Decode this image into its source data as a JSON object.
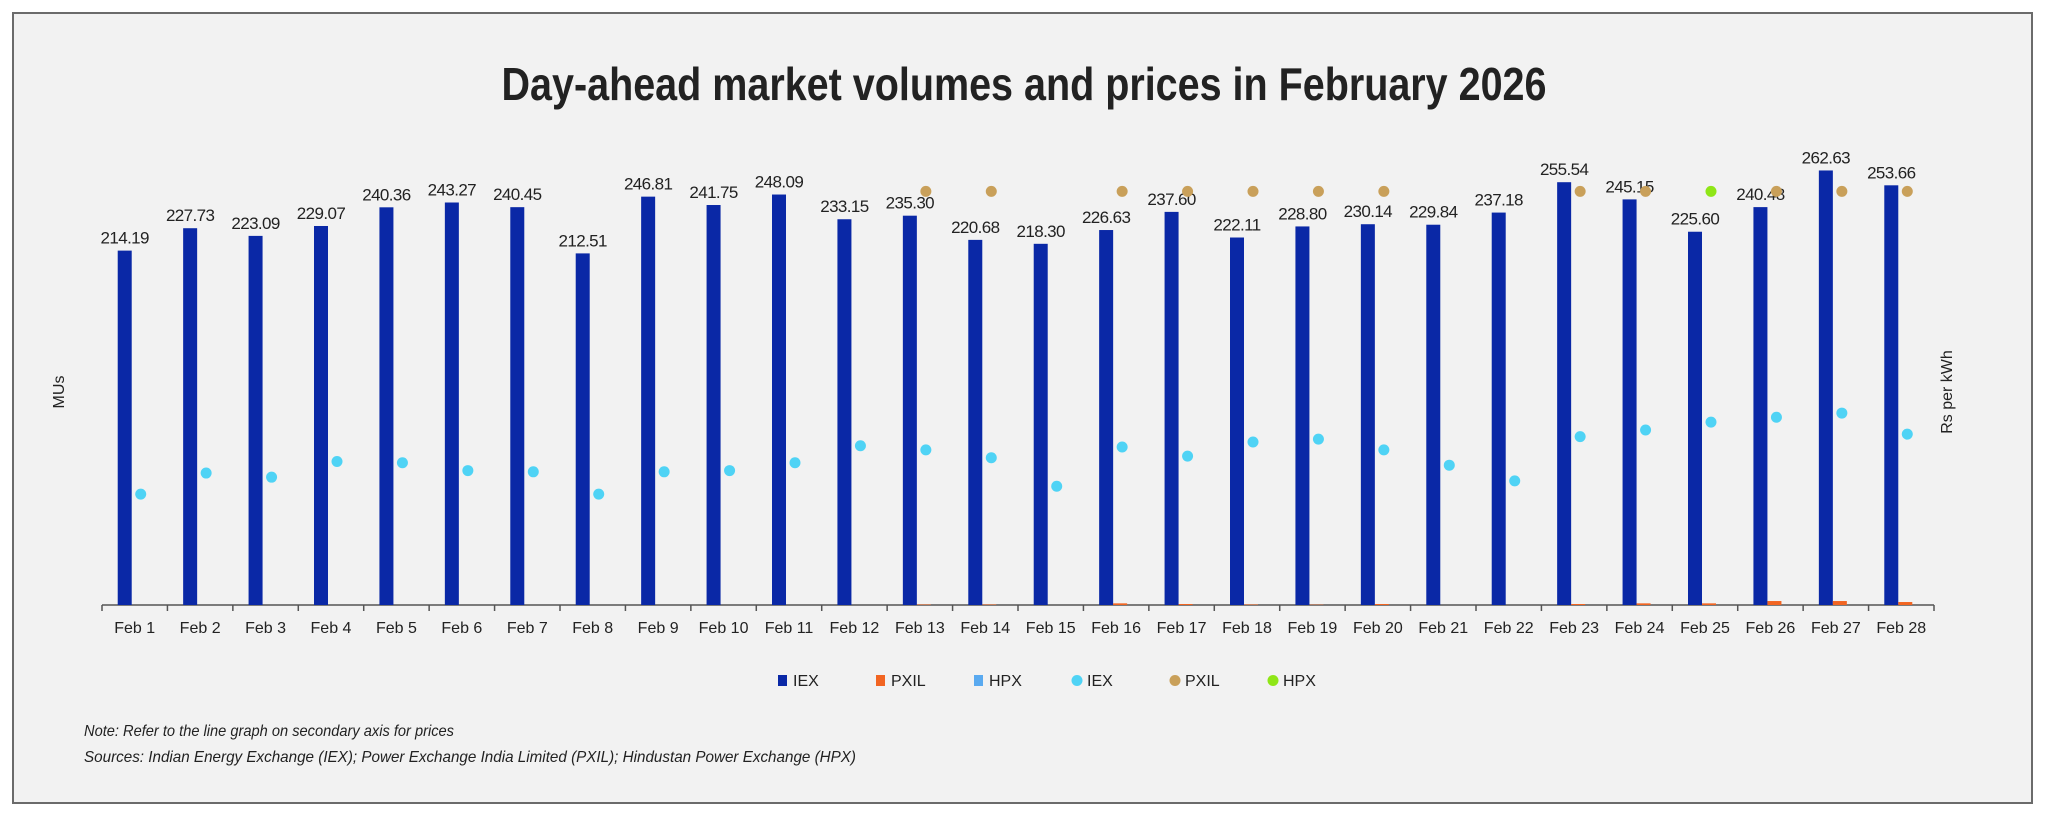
{
  "chart_data": {
    "type": "bar",
    "title": "Day-ahead market volumes and prices in February 2026",
    "ylabel": "MUs",
    "y2label": "Rs per kWh",
    "ylim": [
      0,
      275
    ],
    "y2lim": [
      0,
      11
    ],
    "grid": false,
    "legend_position": "bottom",
    "categories": [
      "Feb 1",
      "Feb 2",
      "Feb 3",
      "Feb 4",
      "Feb 5",
      "Feb 6",
      "Feb 7",
      "Feb 8",
      "Feb 9",
      "Feb 10",
      "Feb 11",
      "Feb 12",
      "Feb 13",
      "Feb 14",
      "Feb 15",
      "Feb 16",
      "Feb 17",
      "Feb 18",
      "Feb 19",
      "Feb 20",
      "Feb 21",
      "Feb 22",
      "Feb 23",
      "Feb 24",
      "Feb 25",
      "Feb 26",
      "Feb 27",
      "Feb 28"
    ],
    "bar_series": [
      {
        "name": "IEX",
        "color": "#0a28a6",
        "values": [
          214.19,
          227.73,
          223.09,
          229.07,
          240.36,
          243.27,
          240.45,
          212.51,
          246.81,
          241.75,
          248.09,
          233.15,
          235.3,
          220.68,
          218.3,
          226.63,
          237.6,
          222.11,
          228.8,
          230.14,
          229.84,
          237.18,
          255.54,
          245.15,
          225.6,
          240.48,
          262.63,
          253.66
        ],
        "data_labels": [
          "214.19",
          "227.73",
          "223.09",
          "229.07",
          "240.36",
          "243.27",
          "240.45",
          "212.51",
          "246.81",
          "241.75",
          "248.09",
          "233.15",
          "235.30",
          "220.68",
          "218.30",
          "226.63",
          "237.60",
          "222.11",
          "228.80",
          "230.14",
          "229.84",
          "237.18",
          "255.54",
          "245.15",
          "225.60",
          "240.48",
          "262.63",
          "253.66"
        ]
      },
      {
        "name": "PXIL",
        "color": "#f26522",
        "values": [
          0,
          0,
          0,
          0,
          0,
          0,
          0,
          0,
          0,
          0,
          0,
          0,
          0.3,
          0.3,
          0,
          1.0,
          0.6,
          0.3,
          0.2,
          0.6,
          0,
          0,
          0.6,
          1.0,
          1.0,
          2.4,
          2.4,
          1.8
        ]
      },
      {
        "name": "HPX",
        "color": "#5aaaf0",
        "values": [
          0,
          0,
          0,
          0,
          0,
          0,
          0,
          0,
          0,
          0,
          0,
          0,
          0,
          0,
          0,
          0,
          0,
          0,
          0,
          0,
          0,
          0,
          0,
          0,
          0,
          0,
          0,
          0
        ]
      }
    ],
    "point_series": [
      {
        "name": "IEX",
        "color": "#4fd3f5",
        "axis": "secondary",
        "values": [
          2.68,
          3.19,
          3.09,
          3.47,
          3.44,
          3.25,
          3.22,
          2.68,
          3.22,
          3.25,
          3.44,
          3.85,
          3.75,
          3.56,
          2.87,
          3.82,
          3.6,
          3.94,
          4.01,
          3.75,
          3.38,
          3.0,
          4.07,
          4.23,
          4.42,
          4.54,
          4.64,
          4.13
        ]
      },
      {
        "name": "PXIL",
        "color": "#c9a05a",
        "axis": "secondary",
        "values": [
          null,
          null,
          null,
          null,
          null,
          null,
          null,
          null,
          null,
          null,
          null,
          null,
          10,
          10,
          null,
          10,
          10,
          10,
          10,
          10,
          null,
          null,
          10,
          10,
          null,
          10,
          10,
          10
        ]
      },
      {
        "name": "HPX",
        "color": "#8fe617",
        "axis": "secondary",
        "values": [
          null,
          null,
          null,
          null,
          null,
          null,
          null,
          null,
          null,
          null,
          null,
          null,
          null,
          null,
          null,
          null,
          null,
          null,
          null,
          null,
          null,
          null,
          null,
          null,
          10,
          null,
          null,
          null
        ]
      }
    ]
  },
  "footer": {
    "note": "Note: Refer to the line graph on secondary axis for prices",
    "sources": "Sources: Indian Energy Exchange (IEX); Power Exchange India Limited (PXIL); Hindustan Power Exchange (HPX)"
  },
  "colors": {
    "background": "#f2f2f2",
    "border": "#6b6b6b",
    "axis": "#555555"
  }
}
